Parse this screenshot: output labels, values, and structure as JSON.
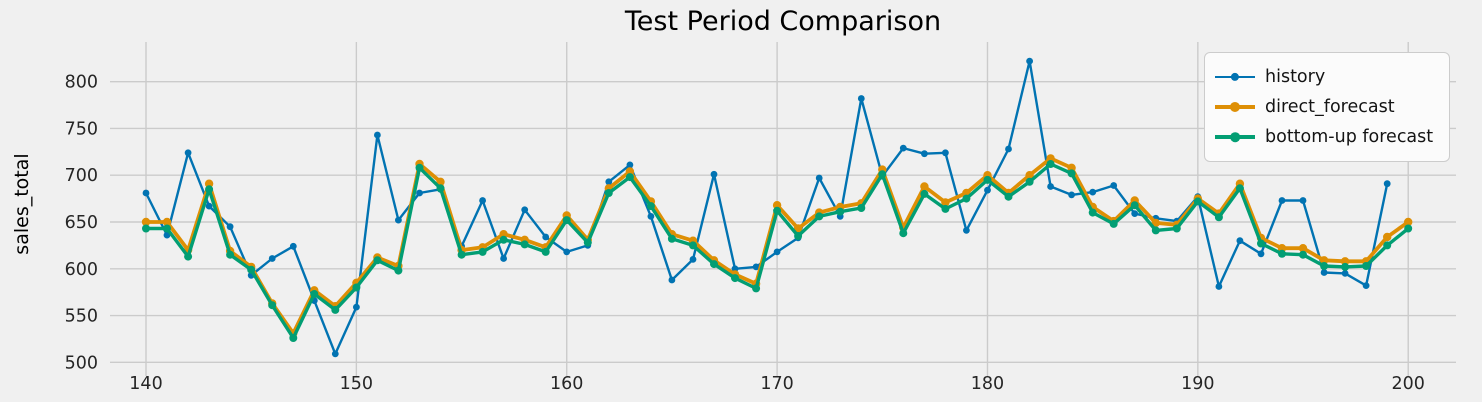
{
  "chart_data": {
    "type": "line",
    "title": "Test Period Comparison",
    "xlabel": "",
    "ylabel": "sales_total",
    "xticks": [
      140,
      150,
      160,
      170,
      180,
      190,
      200
    ],
    "yticks": [
      500,
      550,
      600,
      650,
      700,
      750,
      800
    ],
    "xlim": [
      138.3,
      202.3
    ],
    "ylim": [
      485,
      843
    ],
    "grid": true,
    "legend_position": "upper right",
    "background_color": "#f0f0f0",
    "grid_color": "#cbcbcb",
    "tick_color": "#262626",
    "series": [
      {
        "name": "history",
        "color": "#0173b2",
        "x_start": 140,
        "x_step": 1,
        "values": [
          681,
          636,
          724,
          667,
          645,
          593,
          611,
          624,
          566,
          509,
          559,
          743,
          652,
          681,
          685,
          624,
          673,
          611,
          663,
          634,
          618,
          625,
          693,
          711,
          656,
          588,
          610,
          701,
          600,
          602,
          618,
          633,
          697,
          656,
          782,
          699,
          729,
          723,
          724,
          641,
          684,
          728,
          822,
          688,
          679,
          682,
          689,
          659,
          654,
          651,
          677,
          581,
          630,
          616,
          673,
          673,
          596,
          595,
          582,
          691
        ]
      },
      {
        "name": "direct_forecast",
        "color": "#de8f05",
        "x_start": 140,
        "x_step": 1,
        "values": [
          650,
          650,
          620,
          691,
          619,
          602,
          563,
          531,
          577,
          560,
          585,
          612,
          603,
          712,
          693,
          620,
          623,
          637,
          631,
          623,
          657,
          631,
          686,
          704,
          672,
          637,
          630,
          609,
          594,
          584,
          668,
          643,
          660,
          666,
          670,
          706,
          644,
          688,
          671,
          681,
          700,
          681,
          700,
          718,
          708,
          666,
          651,
          673,
          649,
          647,
          675,
          659,
          691,
          633,
          622,
          622,
          609,
          608,
          608,
          634,
          650
        ]
      },
      {
        "name": "bottom-up forecast",
        "color": "#029e73",
        "x_start": 140,
        "x_step": 1,
        "values": [
          643,
          643,
          613,
          685,
          615,
          599,
          561,
          526,
          573,
          556,
          580,
          609,
          598,
          708,
          686,
          615,
          618,
          631,
          626,
          618,
          652,
          628,
          681,
          698,
          667,
          632,
          625,
          605,
          590,
          579,
          662,
          635,
          656,
          661,
          665,
          701,
          638,
          680,
          664,
          675,
          695,
          677,
          693,
          712,
          702,
          660,
          648,
          668,
          641,
          643,
          672,
          655,
          686,
          627,
          616,
          615,
          603,
          602,
          603,
          625,
          643
        ]
      }
    ]
  }
}
